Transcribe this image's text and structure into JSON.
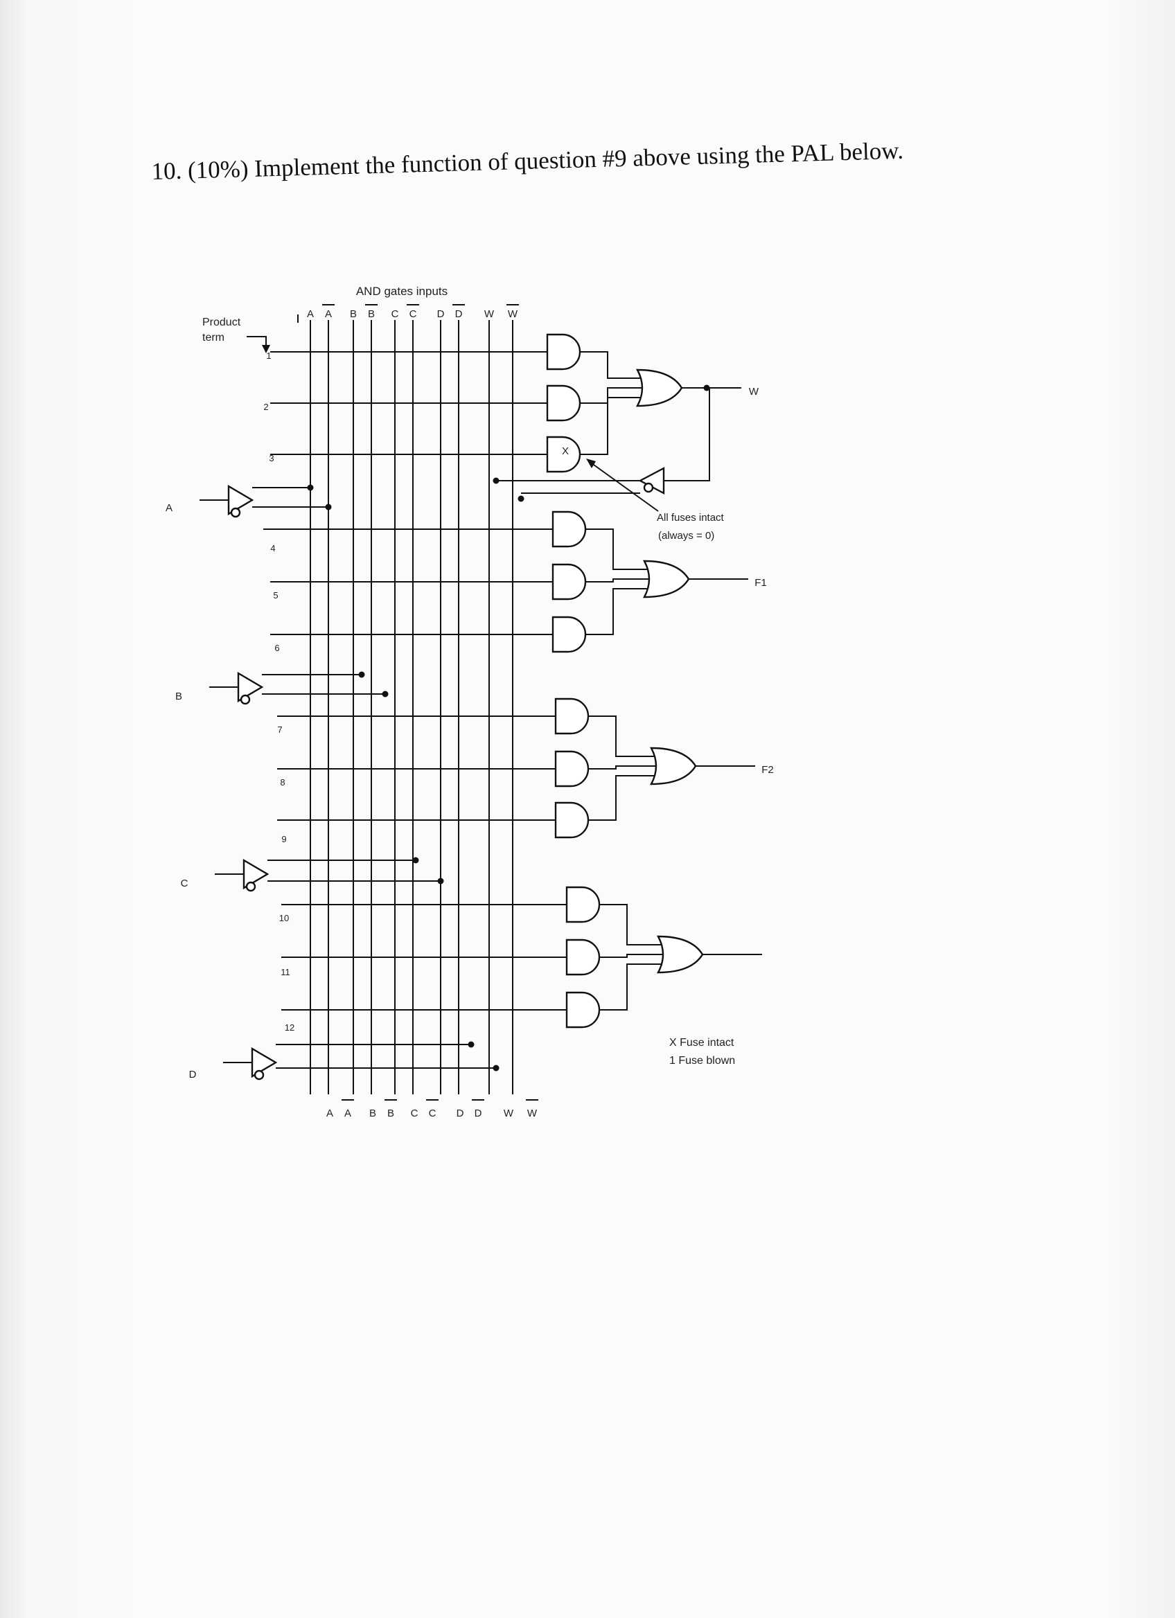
{
  "question": {
    "text": "10.  (10%) Implement the function of question #9 above using the PAL below."
  },
  "diagram": {
    "header_label": "AND gates inputs",
    "product_term_label_line1": "Product",
    "product_term_label_line2": "term",
    "column_labels": [
      "A",
      "A",
      "B",
      "B",
      "C",
      "C",
      "D",
      "D",
      "W",
      "W"
    ],
    "inverted_columns": [
      false,
      true,
      false,
      true,
      false,
      true,
      false,
      true,
      false,
      true
    ],
    "product_terms": [
      "1",
      "2",
      "3",
      "4",
      "5",
      "6",
      "7",
      "8",
      "9",
      "10",
      "11",
      "12"
    ],
    "inputs": [
      "A",
      "B",
      "C",
      "D"
    ],
    "outputs": [
      "W",
      "F1",
      "F2",
      ""
    ],
    "fuse_mark": "X",
    "note_all_fuses_line1": "All fuses intact",
    "note_all_fuses_line2": "(always = 0)",
    "legend_x": "X  Fuse intact",
    "legend_1": "1   Fuse blown"
  }
}
